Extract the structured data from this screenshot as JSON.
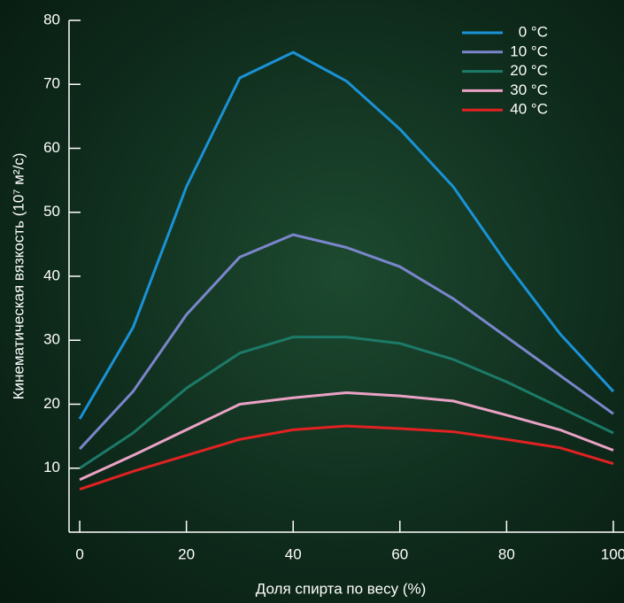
{
  "chart_data": {
    "type": "line",
    "x_label": "Доля спирта по весу (%)",
    "y_label": "Кинематическая вязкость (10⁷ м²/с)",
    "x": [
      0,
      10,
      20,
      30,
      40,
      50,
      60,
      70,
      80,
      90,
      100
    ],
    "series": [
      {
        "name": "0 °C",
        "color": "#1a92d6",
        "values": [
          17.7,
          32,
          54,
          71,
          75,
          70.5,
          63,
          54,
          42,
          31,
          22
        ]
      },
      {
        "name": "10 °C",
        "color": "#7b86cc",
        "values": [
          13,
          22,
          34,
          43,
          46.5,
          44.5,
          41.5,
          36.5,
          30.5,
          24.5,
          18.5
        ]
      },
      {
        "name": "20 °C",
        "color": "#1c7a68",
        "values": [
          10,
          15.5,
          22.5,
          28,
          30.5,
          30.5,
          29.5,
          27,
          23.5,
          19.5,
          15.5
        ]
      },
      {
        "name": "30 °C",
        "color": "#eaa2c4",
        "values": [
          8.2,
          12,
          16,
          20,
          21,
          21.8,
          21.3,
          20.5,
          18.3,
          16,
          12.8
        ]
      },
      {
        "name": "40 °C",
        "color": "#e22222",
        "values": [
          6.7,
          9.5,
          12,
          14.5,
          16,
          16.6,
          16.2,
          15.7,
          14.5,
          13.2,
          10.7
        ]
      }
    ],
    "xlim": [
      -2,
      102
    ],
    "ylim": [
      0,
      80
    ],
    "xticks": [
      0,
      20,
      40,
      60,
      80,
      100
    ],
    "yticks": [
      10,
      20,
      30,
      40,
      50,
      60,
      70,
      80
    ],
    "legend": "upper right"
  }
}
